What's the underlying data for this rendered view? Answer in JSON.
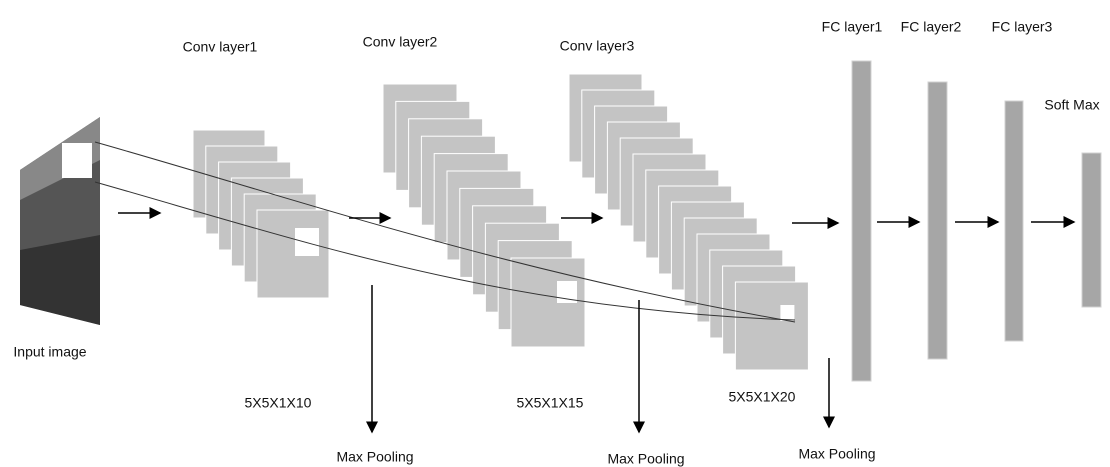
{
  "input": {
    "label": "Input image"
  },
  "conv_layers": [
    {
      "title": "Conv layer1",
      "kernel": "5X5X1X10",
      "pooling": "Max Pooling"
    },
    {
      "title": "Conv layer2",
      "kernel": "5X5X1X15",
      "pooling": "Max Pooling"
    },
    {
      "title": "Conv layer3",
      "kernel": "5X5X1X20",
      "pooling": "Max Pooling"
    }
  ],
  "fc_layers": [
    {
      "title": "FC layer1"
    },
    {
      "title": "FC layer2"
    },
    {
      "title": "FC layer3"
    }
  ],
  "output": {
    "label": "Soft Max"
  }
}
